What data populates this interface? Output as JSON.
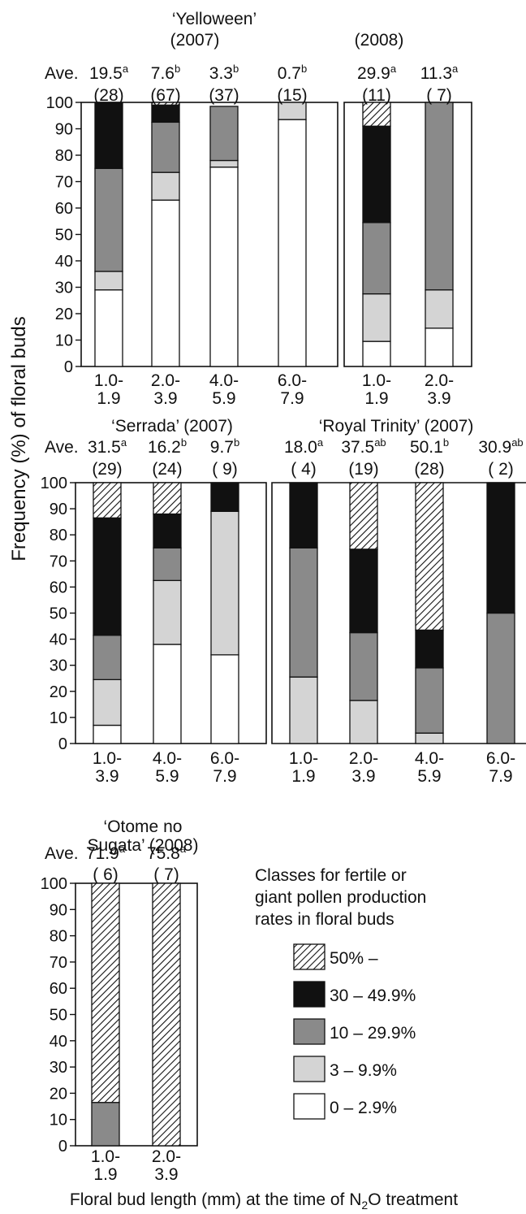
{
  "figure": {
    "ylabel": "Frequency (%) of floral buds",
    "xlabel_main": "Floral bud length (mm) at the time of N",
    "xlabel_sub": "2",
    "xlabel_tail": "O treatment",
    "ave_label": "Ave."
  },
  "legend": {
    "title_lines": [
      "Classes for fertile or",
      "giant pollen production",
      "rates in floral buds"
    ],
    "items": [
      {
        "key": "c50",
        "label": "50% –",
        "fill": "hatch"
      },
      {
        "key": "c30",
        "label": "30 – 49.9%",
        "fill": "#111111"
      },
      {
        "key": "c10",
        "label": "10 – 29.9%",
        "fill": "#8a8a8a"
      },
      {
        "key": "c3",
        "label": "3 –   9.9%",
        "fill": "#d4d4d4"
      },
      {
        "key": "c0",
        "label": "0 –   2.9%",
        "fill": "#ffffff"
      }
    ]
  },
  "chart_data": [
    {
      "type": "bar",
      "stacked": true,
      "title": "‘Yelloween’",
      "subtitle": "(2007)",
      "ylim": [
        0,
        100
      ],
      "yticks": [
        0,
        10,
        20,
        30,
        40,
        50,
        60,
        70,
        80,
        90,
        100
      ],
      "categories": [
        "1.0-\n1.9",
        "2.0-\n3.9",
        "4.0-\n5.9",
        "6.0-\n7.9"
      ],
      "ave": [
        "19.5",
        "7.6",
        "3.3",
        "0.7"
      ],
      "ave_sup": [
        "a",
        "b",
        "b",
        "b"
      ],
      "n": [
        "(28)",
        "(67)",
        "(37)",
        "(15)"
      ],
      "series": [
        {
          "name": "0 – 2.9%",
          "values": [
            29,
            63,
            75.5,
            93.5
          ]
        },
        {
          "name": "3 – 9.9%",
          "values": [
            7,
            10.5,
            2.5,
            6.5
          ]
        },
        {
          "name": "10 – 29.9%",
          "values": [
            39,
            19,
            20.5,
            0
          ]
        },
        {
          "name": "30 – 49.9%",
          "values": [
            25,
            6.5,
            0,
            0
          ]
        },
        {
          "name": "50% –",
          "values": [
            0,
            1,
            0,
            0
          ]
        }
      ]
    },
    {
      "type": "bar",
      "stacked": true,
      "title": "",
      "subtitle": "(2008)",
      "ylim": [
        0,
        100
      ],
      "categories": [
        "1.0-\n1.9",
        "2.0-\n3.9"
      ],
      "ave": [
        "29.9",
        "11.3"
      ],
      "ave_sup": [
        "a",
        "a"
      ],
      "n": [
        "(11)",
        "( 7)"
      ],
      "series": [
        {
          "name": "0 – 2.9%",
          "values": [
            9.5,
            14.5
          ]
        },
        {
          "name": "3 – 9.9%",
          "values": [
            18,
            14.5
          ]
        },
        {
          "name": "10 – 29.9%",
          "values": [
            27,
            71
          ]
        },
        {
          "name": "30 – 49.9%",
          "values": [
            36.5,
            0
          ]
        },
        {
          "name": "50% –",
          "values": [
            9,
            0
          ]
        }
      ]
    },
    {
      "type": "bar",
      "stacked": true,
      "title": "‘Serrada’ (2007)",
      "subtitle": "",
      "ylim": [
        0,
        100
      ],
      "yticks": [
        0,
        10,
        20,
        30,
        40,
        50,
        60,
        70,
        80,
        90,
        100
      ],
      "categories": [
        "1.0-\n3.9",
        "4.0-\n5.9",
        "6.0-\n7.9"
      ],
      "ave": [
        "31.5",
        "16.2",
        "9.7"
      ],
      "ave_sup": [
        "a",
        "b",
        "b"
      ],
      "n": [
        "(29)",
        "(24)",
        "( 9)"
      ],
      "series": [
        {
          "name": "0 – 2.9%",
          "values": [
            7,
            38,
            34
          ]
        },
        {
          "name": "3 – 9.9%",
          "values": [
            17.5,
            24.5,
            55
          ]
        },
        {
          "name": "10 – 29.9%",
          "values": [
            17,
            12.5,
            0
          ]
        },
        {
          "name": "30 – 49.9%",
          "values": [
            45,
            13,
            11
          ]
        },
        {
          "name": "50% –",
          "values": [
            13.5,
            12,
            0
          ]
        }
      ]
    },
    {
      "type": "bar",
      "stacked": true,
      "title": "‘Royal Trinity’ (2007)",
      "subtitle": "",
      "ylim": [
        0,
        100
      ],
      "categories": [
        "1.0-\n1.9",
        "2.0-\n3.9",
        "4.0-\n5.9",
        "6.0-\n7.9"
      ],
      "ave": [
        "18.0",
        "37.5",
        "50.1",
        "30.9"
      ],
      "ave_sup": [
        "a",
        "ab",
        "b",
        "ab"
      ],
      "n": [
        "( 4)",
        "(19)",
        "(28)",
        "( 2)"
      ],
      "series": [
        {
          "name": "0 – 2.9%",
          "values": [
            0,
            0,
            0,
            0
          ]
        },
        {
          "name": "3 – 9.9%",
          "values": [
            25.5,
            16.5,
            4,
            0
          ]
        },
        {
          "name": "10 – 29.9%",
          "values": [
            49.5,
            26,
            25,
            50
          ]
        },
        {
          "name": "30 – 49.9%",
          "values": [
            25,
            32,
            14.5,
            50
          ]
        },
        {
          "name": "50% –",
          "values": [
            0,
            25.5,
            56.5,
            0
          ]
        }
      ]
    },
    {
      "type": "bar",
      "stacked": true,
      "title": "‘Otome no\nSugata’ (2008)",
      "subtitle": "",
      "ylim": [
        0,
        100
      ],
      "yticks": [
        0,
        10,
        20,
        30,
        40,
        50,
        60,
        70,
        80,
        90,
        100
      ],
      "categories": [
        "1.0-\n1.9",
        "2.0-\n3.9"
      ],
      "ave": [
        "71.9",
        "75.8"
      ],
      "ave_sup": [
        "a",
        "a"
      ],
      "n": [
        "( 6)",
        "( 7)"
      ],
      "series": [
        {
          "name": "0 – 2.9%",
          "values": [
            0,
            0
          ]
        },
        {
          "name": "3 – 9.9%",
          "values": [
            0,
            0
          ]
        },
        {
          "name": "10 – 29.9%",
          "values": [
            16.5,
            0
          ]
        },
        {
          "name": "30 – 49.9%",
          "values": [
            0,
            0
          ]
        },
        {
          "name": "50% –",
          "values": [
            83.5,
            100
          ]
        }
      ]
    }
  ]
}
